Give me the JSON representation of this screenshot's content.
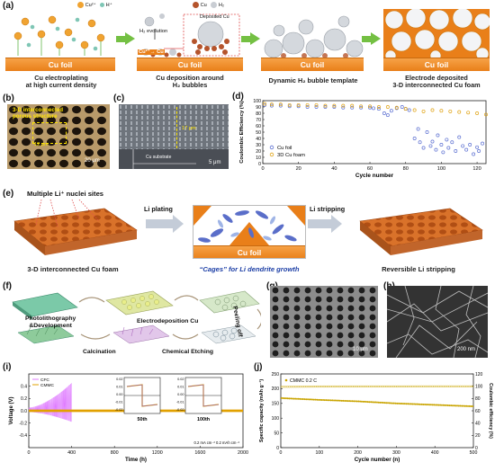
{
  "panels": {
    "a": {
      "label": "(a)",
      "legend": {
        "cu2": "Cu²⁺",
        "h": "H⁺",
        "cu": "Cu",
        "h2": "H₂"
      },
      "foil": "Cu foil",
      "step1_caption": "Cu electroplating\nat high current density",
      "step2_caption": "Cu deposition around\nH₂ bubbles",
      "step2_h2": "H₂ evolution",
      "step2_deposited": "Deposited Cu",
      "step2_reaction": "Cu²⁺→ Cu",
      "step3_caption": "Dynamic H₂ bubble template",
      "step4_caption": "Electrode deposited\n3-D interconnected Cu foam"
    },
    "b": {
      "label": "(b)",
      "note": "3-D interconnected\nporous structure",
      "dim": "12 μm",
      "scale": "20 μm"
    },
    "c": {
      "label": "(c)",
      "dim": "17 μm",
      "substrate": "Cu substrate",
      "scale": "5 μm"
    },
    "d": {
      "label": "(d)"
    },
    "e": {
      "label": "(e)",
      "nuclei": "Multiple Li⁺ nuclei sites",
      "plating": "Li plating",
      "stripping": "Li stripping",
      "foil": "Cu foil",
      "left_caption": "3-D interconnected Cu foam",
      "mid_caption": "“Cages” for Li dendrite growth",
      "right_caption": "Reversible Li stripping"
    },
    "f": {
      "label": "(f)",
      "photo": "Photolithography\n&Development",
      "electro": "Electrodeposition Cu",
      "peel": "Peeling off",
      "calc": "Calcination",
      "etch": "Chemical Etching"
    },
    "g": {
      "label": "(g)",
      "scale": "10 μm"
    },
    "h": {
      "label": "(h)",
      "scale": "200 nm"
    },
    "i": {
      "label": "(i)",
      "legend": [
        "CFC",
        "CMMC"
      ],
      "inset1": "50th",
      "inset2": "100th",
      "note": "0.2 mA cm⁻²   0.2 mAh cm⁻²",
      "xlabel": "Time (h)",
      "ylabel": "Voltage (V)",
      "inset_yticks": [
        "0.02",
        "0.01",
        "0.00",
        "-0.01",
        "-0.02"
      ]
    },
    "j": {
      "label": "(j)",
      "legend": "CMMC  0.2 C"
    }
  },
  "chart_data": [
    {
      "id": "d",
      "type": "scatter",
      "xlabel": "Cycle number",
      "ylabel": "Coulombic Efficiency (%)",
      "xlim": [
        0,
        125
      ],
      "ylim": [
        0,
        100
      ],
      "xticks": [
        0,
        20,
        40,
        60,
        80,
        100,
        120
      ],
      "yticks": [
        0,
        10,
        20,
        30,
        40,
        50,
        60,
        70,
        80,
        90,
        100
      ],
      "legend": "bottom-left",
      "series": [
        {
          "name": "Cu foil",
          "color": "#5b6fd1",
          "x": [
            1,
            5,
            10,
            15,
            20,
            25,
            30,
            35,
            40,
            45,
            50,
            55,
            60,
            62,
            65,
            68,
            70,
            72,
            75,
            78,
            80,
            82,
            85,
            87,
            88,
            90,
            92,
            94,
            95,
            97,
            98,
            100,
            101,
            103,
            104,
            106,
            108,
            110,
            112,
            114,
            116,
            118,
            120,
            121,
            123
          ],
          "y": [
            93,
            92,
            92,
            91,
            91,
            90,
            90,
            90,
            90,
            89,
            89,
            89,
            89,
            88,
            87,
            80,
            77,
            84,
            88,
            90,
            87,
            85,
            40,
            55,
            34,
            25,
            50,
            28,
            35,
            22,
            45,
            30,
            18,
            38,
            25,
            34,
            20,
            42,
            28,
            22,
            30,
            15,
            26,
            20,
            32
          ]
        },
        {
          "name": "3D Cu foam",
          "color": "#e0a314",
          "x": [
            1,
            5,
            10,
            15,
            20,
            25,
            30,
            35,
            40,
            45,
            50,
            55,
            60,
            65,
            70,
            75,
            80,
            85,
            90,
            95,
            100,
            105,
            110,
            115,
            120,
            125
          ],
          "y": [
            95,
            94,
            94,
            93,
            93,
            93,
            93,
            92,
            92,
            92,
            92,
            91,
            91,
            90,
            90,
            89,
            87,
            85,
            83,
            85,
            84,
            83,
            82,
            81,
            80,
            78
          ]
        }
      ]
    },
    {
      "id": "i",
      "type": "line",
      "xlabel": "Time (h)",
      "ylabel": "Voltage (V)",
      "xlim": [
        0,
        2000
      ],
      "ylim": [
        -0.6,
        0.6
      ],
      "xticks": [
        0,
        400,
        800,
        1200,
        1600,
        2000
      ],
      "yticks": [
        -0.4,
        -0.2,
        0.0,
        0.2,
        0.4
      ],
      "series": [
        {
          "name": "CFC",
          "color": "#e07cff",
          "x": [
            0,
            400
          ],
          "y_amplitude": [
            0.05,
            0.45
          ]
        },
        {
          "name": "CMMC",
          "color": "#e2a100",
          "x": [
            0,
            2000
          ],
          "y_amplitude": [
            0.02,
            0.02
          ]
        }
      ]
    },
    {
      "id": "j",
      "type": "scatter",
      "xlabel": "Cycle number (n)",
      "ylabel": "Specific capacity (mAh g⁻¹)",
      "ylabel_right": "Coulombic efficiency (%)",
      "xlim": [
        0,
        500
      ],
      "ylim": [
        0,
        250
      ],
      "ylim_right": [
        0,
        120
      ],
      "xticks": [
        0,
        100,
        200,
        300,
        400,
        500
      ],
      "yticks": [
        0,
        50,
        100,
        150,
        200,
        250
      ],
      "yticks_right": [
        0,
        20,
        40,
        60,
        80,
        100,
        120
      ],
      "series": [
        {
          "name": "Specific capacity",
          "color": "#c9a400",
          "x": [
            0,
            100,
            200,
            300,
            400,
            500
          ],
          "y": [
            168,
            162,
            157,
            150,
            145,
            140
          ]
        },
        {
          "name": "Coulombic efficiency",
          "color": "#c9a400",
          "axis": "right",
          "x": [
            0,
            100,
            200,
            300,
            400,
            500
          ],
          "y": [
            99,
            99.5,
            99.6,
            99.6,
            99.7,
            99.7
          ]
        }
      ]
    }
  ]
}
